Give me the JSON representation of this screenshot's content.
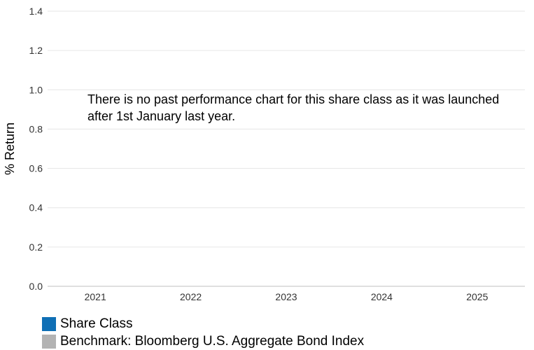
{
  "chart_data": {
    "type": "bar",
    "categories": [
      "2021",
      "2022",
      "2023",
      "2024",
      "2025"
    ],
    "series": [
      {
        "name": "Share Class",
        "color": "#0f6fb5",
        "values": [
          null,
          null,
          null,
          null,
          null
        ]
      },
      {
        "name": "Benchmark: Bloomberg U.S. Aggregate Bond Index",
        "color": "#b3b3b3",
        "values": [
          null,
          null,
          null,
          null,
          null
        ]
      }
    ],
    "ylabel": "% Return",
    "ylim": [
      0,
      1.4
    ],
    "yticks": [
      "0.0",
      "0.2",
      "0.4",
      "0.6",
      "0.8",
      "1.0",
      "1.2",
      "1.4"
    ],
    "grid": true,
    "legend_position": "bottom-left",
    "annotation": "There is no past performance chart for this share class as it was launched after 1st January last year."
  }
}
